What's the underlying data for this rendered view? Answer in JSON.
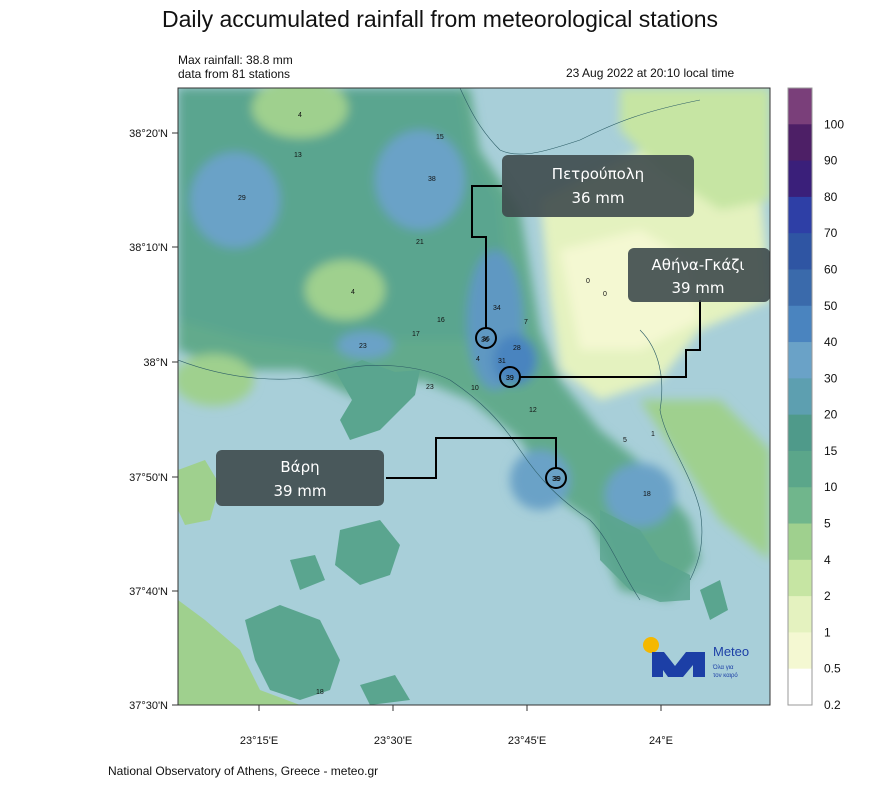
{
  "title": "Daily accumulated rainfall from meteorological stations",
  "info": {
    "max_rainfall": "Max rainfall: 38.8 mm",
    "stations": "data from 81 stations",
    "timestamp": "23 Aug 2022 at 20:10 local time"
  },
  "axes": {
    "lat_labels": [
      "38°20'N",
      "38°10'N",
      "38°N",
      "37°50'N",
      "37°40'N",
      "37°30'N"
    ],
    "lon_labels": [
      "23°15'E",
      "23°30'E",
      "23°45'E",
      "24°E"
    ]
  },
  "callouts": [
    {
      "name": "Πετρούπολη",
      "value": "36 mm",
      "station_value": "36"
    },
    {
      "name": "Αθήνα-Γκάζι",
      "value": "39 mm",
      "station_value": "39"
    },
    {
      "name": "Βάρη",
      "value": "39 mm",
      "station_value": "39"
    }
  ],
  "stations": [
    "4",
    "15",
    "13",
    "29",
    "38",
    "21",
    "4",
    "16",
    "17",
    "23",
    "23",
    "34",
    "36",
    "4",
    "31",
    "28",
    "10",
    "39",
    "12",
    "5",
    "18",
    "1",
    "39",
    "18",
    "0",
    "0",
    "7"
  ],
  "colorbar": {
    "labels": [
      "100",
      "90",
      "80",
      "70",
      "60",
      "50",
      "40",
      "30",
      "20",
      "15",
      "10",
      "5",
      "4",
      "2",
      "1",
      "0.5",
      "0.2"
    ],
    "colors": [
      "#7a3f7a",
      "#4d1f66",
      "#3a1f7a",
      "#2e3fa6",
      "#2f55a3",
      "#3a6aab",
      "#4a84bf",
      "#6aa2c7",
      "#5d9fb0",
      "#4f9a8a",
      "#5ba68a",
      "#70b68c",
      "#9fd08e",
      "#c6e5a3",
      "#e4f2bf",
      "#f4f8d2",
      "#ffffff"
    ]
  },
  "logo": {
    "name": "Meteo",
    "tagline_1": "Όλα για",
    "tagline_2": "τον καιρό"
  },
  "footer": "National Observatory of Athens, Greece - meteo.gr"
}
